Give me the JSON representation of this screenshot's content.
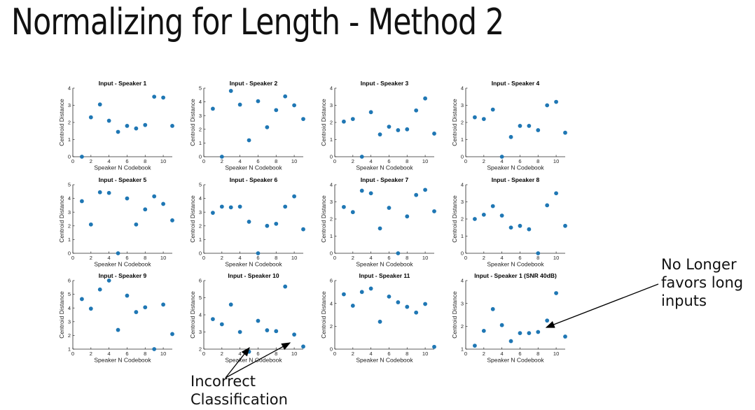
{
  "slide": {
    "title": "Normalizing for Length - Method 2"
  },
  "annotations": {
    "no_longer": [
      "No Longer",
      "favors long",
      "inputs"
    ],
    "incorrect": [
      "Incorrect",
      "Classification"
    ]
  },
  "colors": {
    "marker": "#1f77b4",
    "axis": "#262626",
    "text": "#000000"
  },
  "chart_data": [
    {
      "type": "scatter",
      "title": "Input - Speaker 1",
      "xlabel": "Speaker N Codebook",
      "ylabel": "Centroid Distance",
      "xlim": [
        0,
        11
      ],
      "ylim": [
        0,
        4
      ],
      "xticks": [
        0,
        2,
        4,
        6,
        8,
        10
      ],
      "yticks": [
        0,
        1,
        2,
        3,
        4
      ],
      "x": [
        1,
        2,
        3,
        4,
        5,
        6,
        7,
        8,
        9,
        10,
        11
      ],
      "y": [
        0,
        2.3,
        3.05,
        2.1,
        1.45,
        1.8,
        1.65,
        1.85,
        3.5,
        3.45,
        1.8
      ]
    },
    {
      "type": "scatter",
      "title": "Input - Speaker 2",
      "xlabel": "Speaker N Codebook",
      "ylabel": "Centroid Distance",
      "xlim": [
        0,
        11
      ],
      "ylim": [
        0,
        5
      ],
      "xticks": [
        0,
        2,
        4,
        6,
        8,
        10
      ],
      "yticks": [
        0,
        1,
        2,
        3,
        4,
        5
      ],
      "x": [
        1,
        2,
        3,
        4,
        5,
        6,
        7,
        8,
        9,
        10,
        11
      ],
      "y": [
        3.5,
        0,
        4.8,
        3.8,
        1.2,
        4.05,
        2.15,
        3.4,
        4.4,
        3.75,
        2.75
      ]
    },
    {
      "type": "scatter",
      "title": "Input - Speaker 3",
      "xlabel": "Speaker N Codebook",
      "ylabel": "Centroid Distance",
      "xlim": [
        0,
        11
      ],
      "ylim": [
        0,
        4
      ],
      "xticks": [
        0,
        2,
        4,
        6,
        8,
        10
      ],
      "yticks": [
        0,
        1,
        2,
        3,
        4
      ],
      "x": [
        1,
        2,
        3,
        4,
        5,
        6,
        7,
        8,
        9,
        10,
        11
      ],
      "y": [
        2.05,
        2.2,
        0,
        2.6,
        1.3,
        1.75,
        1.55,
        1.6,
        2.7,
        3.4,
        1.35
      ]
    },
    {
      "type": "scatter",
      "title": "Input - Speaker 4",
      "xlabel": "Speaker N Codebook",
      "ylabel": "Centroid Distance",
      "xlim": [
        0,
        11
      ],
      "ylim": [
        0,
        4
      ],
      "xticks": [
        0,
        2,
        4,
        6,
        8,
        10
      ],
      "yticks": [
        0,
        1,
        2,
        3,
        4
      ],
      "x": [
        1,
        2,
        3,
        4,
        5,
        6,
        7,
        8,
        9,
        10,
        11
      ],
      "y": [
        2.3,
        2.2,
        2.75,
        0,
        1.15,
        1.8,
        1.8,
        1.55,
        3.0,
        3.2,
        1.4
      ]
    },
    {
      "type": "scatter",
      "title": "Input - Speaker 5",
      "xlabel": "Speaker N Codebook",
      "ylabel": "Centroid Distance",
      "xlim": [
        0,
        11
      ],
      "ylim": [
        0,
        5
      ],
      "xticks": [
        0,
        2,
        4,
        6,
        8,
        10
      ],
      "yticks": [
        0,
        1,
        2,
        3,
        4,
        5
      ],
      "x": [
        1,
        2,
        3,
        4,
        5,
        6,
        7,
        8,
        9,
        10,
        11
      ],
      "y": [
        3.8,
        2.1,
        4.45,
        4.4,
        0,
        4.0,
        2.1,
        3.2,
        4.15,
        3.6,
        2.4
      ]
    },
    {
      "type": "scatter",
      "title": "Input - Speaker 6",
      "xlabel": "Speaker N Codebook",
      "ylabel": "Centroid Distance",
      "xlim": [
        0,
        11
      ],
      "ylim": [
        0,
        5
      ],
      "xticks": [
        0,
        2,
        4,
        6,
        8,
        10
      ],
      "yticks": [
        0,
        1,
        2,
        3,
        4,
        5
      ],
      "x": [
        1,
        2,
        3,
        4,
        5,
        6,
        7,
        8,
        9,
        10,
        11
      ],
      "y": [
        2.95,
        3.4,
        3.35,
        3.4,
        2.3,
        0,
        2.0,
        2.15,
        3.4,
        4.15,
        1.75
      ]
    },
    {
      "type": "scatter",
      "title": "Input - Speaker 7",
      "xlabel": "Speaker N Codebook",
      "ylabel": "Centroid Distance",
      "xlim": [
        0,
        11
      ],
      "ylim": [
        0,
        4
      ],
      "xticks": [
        0,
        2,
        4,
        6,
        8,
        10
      ],
      "yticks": [
        0,
        1,
        2,
        3,
        4
      ],
      "x": [
        1,
        2,
        3,
        4,
        5,
        6,
        7,
        8,
        9,
        10,
        11
      ],
      "y": [
        2.7,
        2.4,
        3.65,
        3.5,
        1.45,
        2.65,
        0,
        2.15,
        3.4,
        3.7,
        2.45
      ]
    },
    {
      "type": "scatter",
      "title": "Input - Speaker 8",
      "xlabel": "Speaker N Codebook",
      "ylabel": "Centroid Distance",
      "xlim": [
        0,
        11
      ],
      "ylim": [
        0,
        4
      ],
      "xticks": [
        0,
        2,
        4,
        6,
        8,
        10
      ],
      "yticks": [
        0,
        1,
        2,
        3,
        4
      ],
      "x": [
        1,
        2,
        3,
        4,
        5,
        6,
        7,
        8,
        9,
        10,
        11
      ],
      "y": [
        2.0,
        2.25,
        2.75,
        2.2,
        1.5,
        1.6,
        1.4,
        0,
        2.8,
        3.5,
        1.6
      ]
    },
    {
      "type": "scatter",
      "title": "Input - Speaker 9",
      "xlabel": "Speaker N Codebook",
      "ylabel": "Centroid Distance",
      "xlim": [
        0,
        11
      ],
      "ylim": [
        1,
        6
      ],
      "xticks": [
        0,
        2,
        4,
        6,
        8,
        10
      ],
      "yticks": [
        1,
        2,
        3,
        4,
        5,
        6
      ],
      "x": [
        1,
        2,
        3,
        4,
        5,
        6,
        7,
        8,
        9,
        10,
        11
      ],
      "y": [
        4.65,
        3.95,
        5.35,
        6.0,
        2.4,
        4.9,
        3.7,
        4.05,
        1.0,
        4.25,
        2.1
      ]
    },
    {
      "type": "scatter",
      "title": "Input - Speaker 10",
      "xlabel": "Speaker N Codebook",
      "ylabel": "Centroid Distance",
      "xlim": [
        0,
        11
      ],
      "ylim": [
        2,
        6
      ],
      "xticks": [
        0,
        2,
        4,
        6,
        8,
        10
      ],
      "yticks": [
        2,
        3,
        4,
        5,
        6
      ],
      "x": [
        1,
        2,
        3,
        4,
        5,
        6,
        7,
        8,
        9,
        10,
        11
      ],
      "y": [
        3.75,
        3.45,
        4.6,
        3.0,
        1.85,
        3.65,
        3.1,
        3.05,
        5.65,
        2.85,
        2.15
      ]
    },
    {
      "type": "scatter",
      "title": "Input - Speaker 11",
      "xlabel": "Speaker N Codebook",
      "ylabel": "Centroid Distance",
      "xlim": [
        0,
        11
      ],
      "ylim": [
        0,
        6
      ],
      "xticks": [
        0,
        2,
        4,
        6,
        8,
        10
      ],
      "yticks": [
        0,
        2,
        4,
        6
      ],
      "x": [
        1,
        2,
        3,
        4,
        5,
        6,
        7,
        8,
        9,
        10,
        11
      ],
      "y": [
        4.8,
        3.8,
        5.0,
        5.3,
        2.4,
        4.6,
        4.1,
        3.7,
        3.2,
        3.95,
        0.2
      ]
    },
    {
      "type": "scatter",
      "title": "Input - Speaker 1 (SNR 40dB)",
      "xlabel": "Speaker N Codebook",
      "ylabel": "Centroid Distance",
      "xlim": [
        0,
        11
      ],
      "ylim": [
        1,
        4
      ],
      "xticks": [
        0,
        2,
        4,
        6,
        8,
        10
      ],
      "yticks": [
        1,
        2,
        3,
        4
      ],
      "x": [
        1,
        2,
        3,
        4,
        5,
        6,
        7,
        8,
        9,
        10,
        11
      ],
      "y": [
        1.15,
        1.8,
        2.75,
        2.05,
        1.35,
        1.7,
        1.7,
        1.75,
        2.25,
        3.45,
        1.55
      ]
    }
  ]
}
